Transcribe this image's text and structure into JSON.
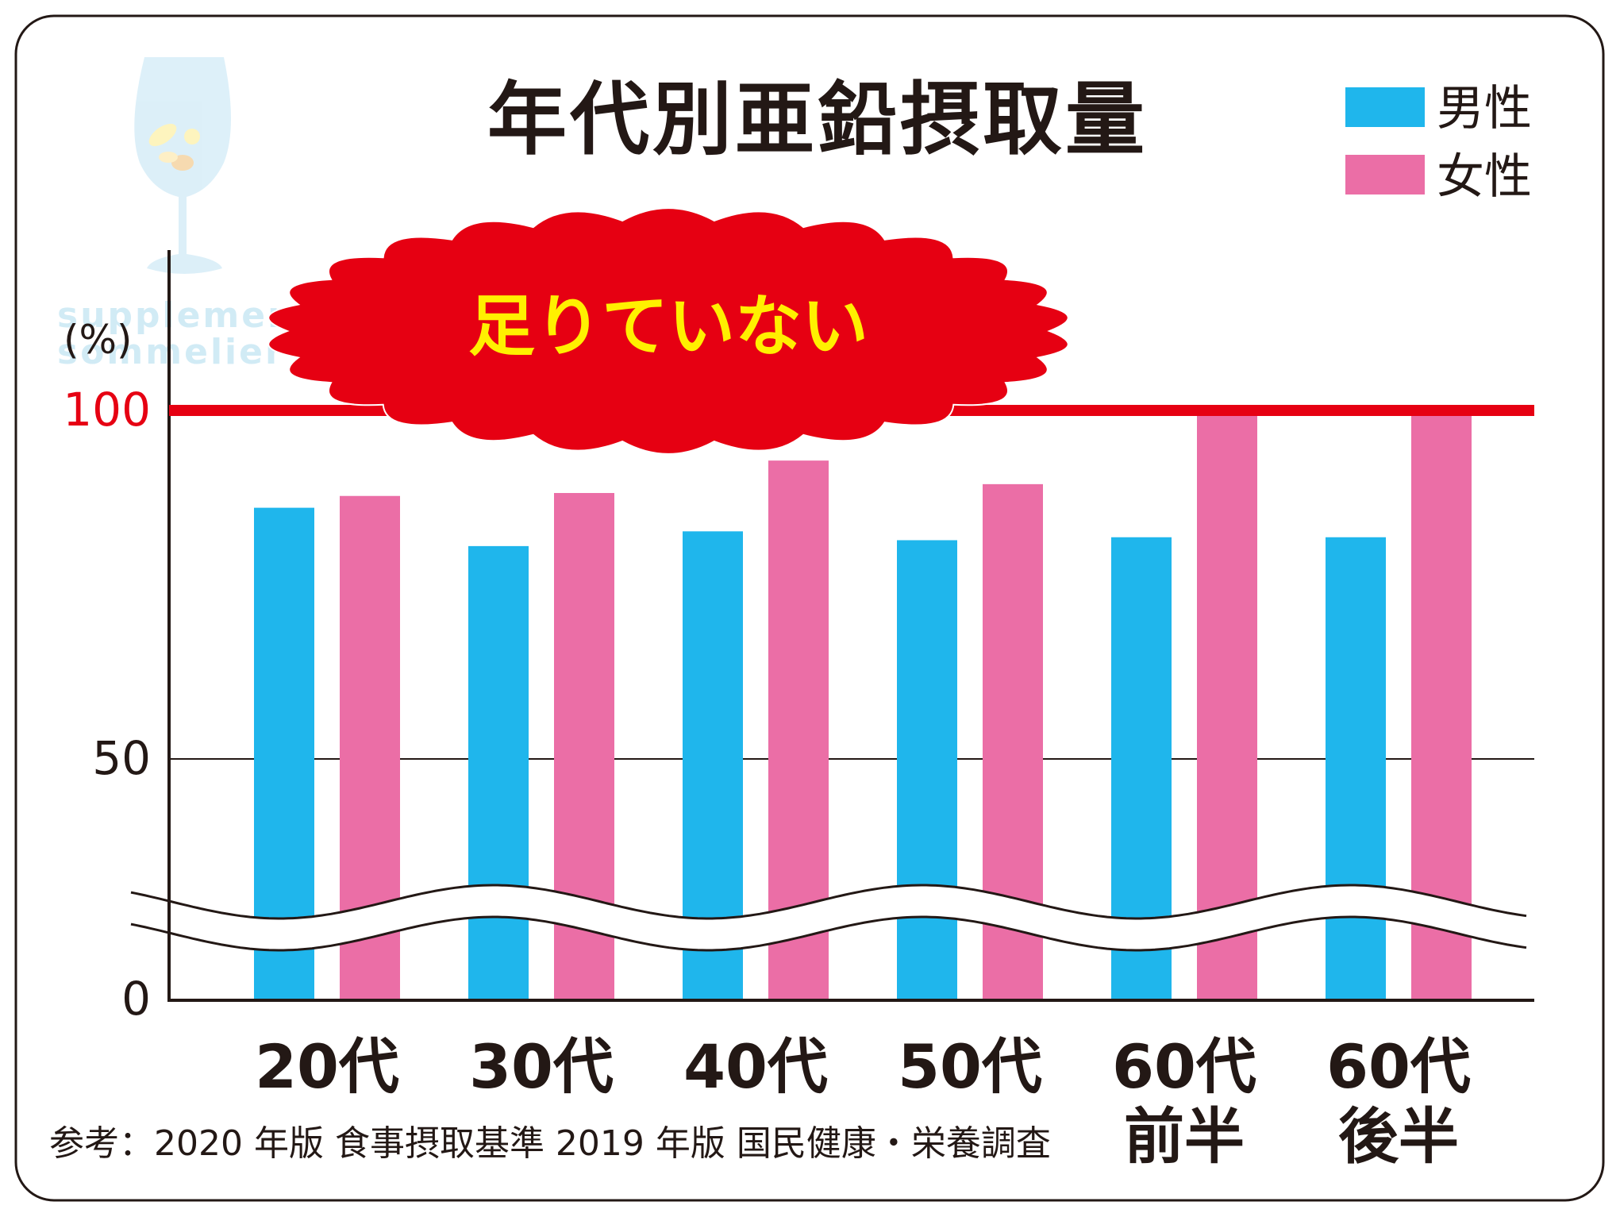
{
  "chart_data": {
    "type": "bar",
    "title": "年代別亜鉛摂取量",
    "ylabel": "(%)",
    "ylim": [
      0,
      100
    ],
    "yticks": [
      0,
      50,
      100
    ],
    "ytick_labels": [
      "0",
      "50",
      "100"
    ],
    "grid": "y=50 line only",
    "axis_break": true,
    "legend_position": "top-right",
    "categories": [
      [
        "20代"
      ],
      [
        "30代"
      ],
      [
        "40代"
      ],
      [
        "50代"
      ],
      [
        "60代",
        "前半"
      ],
      [
        "60代",
        "後半"
      ]
    ],
    "series": [
      {
        "name": "男性",
        "color": "#1fb6ec",
        "values": [
          83.5,
          77,
          79.5,
          78,
          78.5,
          78.5
        ]
      },
      {
        "name": "女性",
        "color": "#eb6ea6",
        "values": [
          85.5,
          86,
          91.5,
          87.5,
          100,
          100
        ]
      }
    ],
    "reference_line": {
      "value": 100,
      "label": "100",
      "color": "#e60012"
    },
    "callout": {
      "text": "足りていない",
      "fill": "#e60012",
      "text_color": "#fff000"
    },
    "source_note": "参考：2020 年版 食事摂取基準  2019 年版 国民健康・栄養調査",
    "watermark": {
      "lines": [
        "supplement",
        "sommelier"
      ],
      "icon": "wine-glass-supplement-icon"
    }
  }
}
